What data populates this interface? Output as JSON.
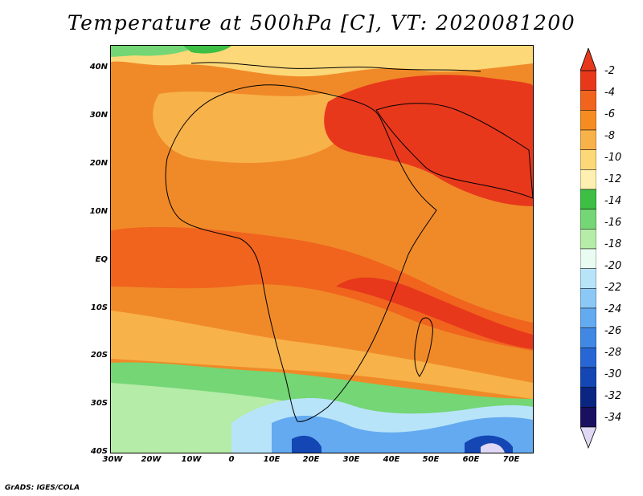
{
  "title": "Temperature at 500hPa [C], VT: 2020081200",
  "credit": "GrADS: IGES/COLA",
  "lat_labels": [
    "40N",
    "30N",
    "20N",
    "10N",
    "EQ",
    "10S",
    "20S",
    "30S",
    "40S"
  ],
  "lon_labels": [
    "30W",
    "20W",
    "10W",
    "0",
    "10E",
    "20E",
    "30E",
    "40E",
    "50E",
    "60E",
    "70E"
  ],
  "colorbar": {
    "levels": [
      "-2",
      "-4",
      "-6",
      "-8",
      "-10",
      "-12",
      "-14",
      "-16",
      "-18",
      "-20",
      "-22",
      "-24",
      "-26",
      "-28",
      "-30",
      "-32",
      "-34"
    ],
    "colors": [
      "#e8381c",
      "#f0641e",
      "#f58c22",
      "#f8b24a",
      "#fcd878",
      "#fdf0b0",
      "#3cbf44",
      "#74d674",
      "#b4eca8",
      "#eafcf2",
      "#b8e4fa",
      "#8cc8f6",
      "#64aaf0",
      "#4088e4",
      "#2866d4",
      "#1446b4",
      "#0a2682",
      "#1a1060"
    ],
    "extend_min_color": "#e0d8f4",
    "extend_max_color": "#e8381c"
  },
  "chart_data": {
    "type": "heatmap",
    "title": "Temperature at 500hPa [C], VT: 2020081200",
    "variable": "Temperature at 500hPa",
    "units": "C",
    "valid_time": "2020081200",
    "lon_range": [
      -30,
      76
    ],
    "lat_range": [
      -40,
      45
    ],
    "lat_ticks": [
      40,
      30,
      20,
      10,
      0,
      -10,
      -20,
      -30,
      -40
    ],
    "lon_ticks": [
      -30,
      -20,
      -10,
      0,
      10,
      20,
      30,
      40,
      50,
      60,
      70
    ],
    "contour_levels": [
      -2,
      -4,
      -6,
      -8,
      -10,
      -12,
      -14,
      -16,
      -18,
      -20,
      -22,
      -24,
      -26,
      -28,
      -30,
      -32,
      -34
    ]
  }
}
